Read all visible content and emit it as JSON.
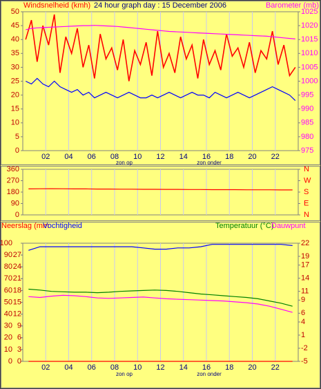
{
  "chart_data": [
    {
      "type": "line",
      "title": "24 hour graph day : 15 December 2006",
      "x": [
        0.25,
        0.75,
        1.25,
        1.75,
        2.25,
        2.75,
        3.25,
        3.75,
        4.25,
        4.75,
        5.25,
        5.75,
        6.25,
        6.75,
        7.25,
        7.75,
        8.25,
        8.75,
        9.25,
        9.75,
        10.25,
        10.75,
        11.25,
        11.75,
        12.25,
        12.75,
        13.25,
        13.75,
        14.25,
        14.75,
        15.25,
        15.75,
        16.25,
        16.75,
        17.25,
        17.75,
        18.25,
        18.75,
        19.25,
        19.75,
        20.25,
        20.75,
        21.25,
        21.75,
        22.25,
        22.75,
        23.25,
        23.75
      ],
      "series": [
        {
          "name": "Windsnelheid (kmh)",
          "color": "#ff0000",
          "axis": "y",
          "values": [
            40,
            47,
            32,
            45,
            38,
            49,
            28,
            41,
            35,
            44,
            30,
            38,
            26,
            42,
            33,
            37,
            29,
            40,
            25,
            36,
            31,
            39,
            27,
            43,
            30,
            35,
            28,
            41,
            33,
            38,
            26,
            40,
            31,
            36,
            29,
            42,
            34,
            37,
            30,
            39,
            28,
            36,
            33,
            43,
            31,
            38,
            27,
            30
          ]
        },
        {
          "color": "#0000ff",
          "axis": "y",
          "values": [
            25,
            24,
            26,
            24,
            23,
            25,
            23,
            22,
            21,
            22,
            20,
            21,
            19,
            20,
            21,
            20,
            19,
            20,
            21,
            20,
            19,
            19,
            20,
            19,
            20,
            21,
            20,
            19,
            20,
            21,
            20,
            20,
            19,
            21,
            20,
            19,
            20,
            21,
            20,
            19,
            20,
            21,
            22,
            23,
            22,
            21,
            20,
            18
          ]
        },
        {
          "name": "Barometer (mb)",
          "color": "#ff00ff",
          "axis": "y2",
          "values": [
            1018.5,
            1019,
            1019.2,
            1019.3,
            1019.4,
            1019.5,
            1019.6,
            1019.7,
            1019.8,
            1019.9,
            1020,
            1020,
            1020.1,
            1020,
            1019.9,
            1019.8,
            1019.7,
            1019.5,
            1019.3,
            1019.1,
            1018.9,
            1018.7,
            1018.5,
            1018.3,
            1018.1,
            1017.9,
            1017.8,
            1017.7,
            1017.6,
            1017.5,
            1017.4,
            1017.3,
            1017.2,
            1017.1,
            1017,
            1016.9,
            1016.8,
            1016.7,
            1016.6,
            1016.5,
            1016.4,
            1016.3,
            1016.2,
            1016,
            1015.8,
            1015.6,
            1015.4,
            1015.2
          ]
        }
      ],
      "xlim": [
        0,
        24
      ],
      "xticks": [
        {
          "value": 2,
          "label": "02"
        },
        {
          "value": 4,
          "label": "04"
        },
        {
          "value": 6,
          "label": "06"
        },
        {
          "value": 8,
          "label": "08"
        },
        10,
        12,
        14,
        16,
        18,
        20,
        22
      ],
      "ylim": [
        0,
        50
      ],
      "yticks": [
        0,
        5,
        10,
        15,
        20,
        25,
        30,
        35,
        40,
        45,
        50
      ],
      "y2lim": [
        975,
        1025
      ],
      "y2ticks": [
        975,
        980,
        985,
        990,
        995,
        1000,
        1005,
        1010,
        1015,
        1020,
        1025
      ],
      "annotations": [
        "zon op",
        "zon onder"
      ],
      "grid": "x",
      "show_xtick_labels": true
    },
    {
      "type": "line",
      "x": [
        0.5,
        1.5,
        2.5,
        3.5,
        4.5,
        5.5,
        6.5,
        7.5,
        8.5,
        9.5,
        10.5,
        11.5,
        12.5,
        13.5,
        14.5,
        15.5,
        16.5,
        17.5,
        18.5,
        19.5,
        20.5,
        21.5,
        22.5,
        23.5
      ],
      "series": [
        {
          "color": "#ff0000",
          "axis": "y",
          "values": [
            205,
            206,
            207,
            206,
            205,
            205,
            204,
            204,
            203,
            203,
            202,
            202,
            201,
            201,
            200,
            200,
            199,
            199,
            199,
            198,
            198,
            198,
            197,
            197
          ]
        }
      ],
      "xlim": [
        0,
        24
      ],
      "xticks": [
        {
          "value": 2,
          "label": "02"
        },
        {
          "value": 4,
          "label": "04"
        },
        {
          "value": 6,
          "label": "06"
        },
        {
          "value": 8,
          "label": "08"
        },
        10,
        12,
        14,
        16,
        18,
        20,
        22
      ],
      "ylim": [
        0,
        360
      ],
      "yticks": [
        0,
        90,
        180,
        270,
        360
      ],
      "y2lim": [
        0,
        360
      ],
      "y2ticks": [
        {
          "value": 0,
          "label": "N"
        },
        {
          "value": 90,
          "label": "E"
        },
        {
          "value": 180,
          "label": "S"
        },
        {
          "value": 270,
          "label": "W"
        },
        {
          "value": 360,
          "label": "N"
        }
      ],
      "grid": "x",
      "show_xtick_labels": false
    },
    {
      "type": "line",
      "x": [
        0.5,
        1.5,
        2.5,
        3.5,
        4.5,
        5.5,
        6.5,
        7.5,
        8.5,
        9.5,
        10.5,
        11.5,
        12.5,
        13.5,
        14.5,
        15.5,
        16.5,
        17.5,
        18.5,
        19.5,
        20.5,
        21.5,
        22.5,
        23.5
      ],
      "series": [
        {
          "name": "Neerslag (mm",
          "color": "#ff0000",
          "axis": "y3",
          "values": [
            0,
            0,
            0,
            0,
            0,
            0,
            0,
            0,
            0,
            0,
            0,
            0,
            0,
            0,
            0,
            0,
            0,
            0,
            0,
            0,
            0,
            0,
            0,
            0
          ]
        },
        {
          "name": "Vochtigheid",
          "color": "#0000ff",
          "axis": "y",
          "values": [
            94,
            97,
            97,
            97,
            97,
            97,
            97,
            97,
            97,
            97,
            96,
            95,
            95,
            96,
            96,
            97,
            99,
            99,
            99,
            99,
            99,
            99,
            99,
            98
          ]
        },
        {
          "name": "Temperatuur (°C)",
          "color": "#008000",
          "axis": "y2",
          "values": [
            11.5,
            11.3,
            11.0,
            10.9,
            10.8,
            10.8,
            10.7,
            10.8,
            11.0,
            11.1,
            11.2,
            11.3,
            11.2,
            11.0,
            10.7,
            10.4,
            10.2,
            10.0,
            9.8,
            9.6,
            9.3,
            8.8,
            8.3,
            7.6
          ]
        },
        {
          "name": "Dauwpunt",
          "color": "#ff00ff",
          "axis": "y2",
          "values": [
            9.8,
            9.6,
            9.9,
            10.1,
            10.0,
            9.8,
            9.5,
            9.4,
            9.5,
            9.6,
            9.7,
            9.5,
            9.3,
            9.2,
            9.1,
            9.0,
            8.9,
            8.8,
            8.6,
            8.4,
            8.1,
            7.6,
            6.9,
            6.2
          ]
        }
      ],
      "xlim": [
        0,
        24
      ],
      "xticks": [
        {
          "value": 2,
          "label": "02"
        },
        {
          "value": 4,
          "label": "04"
        },
        {
          "value": 6,
          "label": "06"
        },
        {
          "value": 8,
          "label": "08"
        },
        10,
        12,
        14,
        16,
        18,
        20,
        22
      ],
      "ylim": [
        0,
        100
      ],
      "yticks": [
        0,
        10,
        20,
        30,
        40,
        50,
        60,
        70,
        80,
        90,
        100
      ],
      "y3lim": [
        0,
        30
      ],
      "y3ticks": [
        0,
        3,
        6,
        9,
        12,
        15,
        18,
        21,
        24,
        27
      ],
      "y2lim": [
        -5,
        22
      ],
      "y2ticks": [
        -5,
        -2,
        1,
        4,
        6,
        9,
        11,
        14,
        17,
        19,
        22
      ],
      "annotations": [
        "zon op",
        "zon onder"
      ],
      "grid": "x",
      "show_xtick_labels": true
    }
  ]
}
